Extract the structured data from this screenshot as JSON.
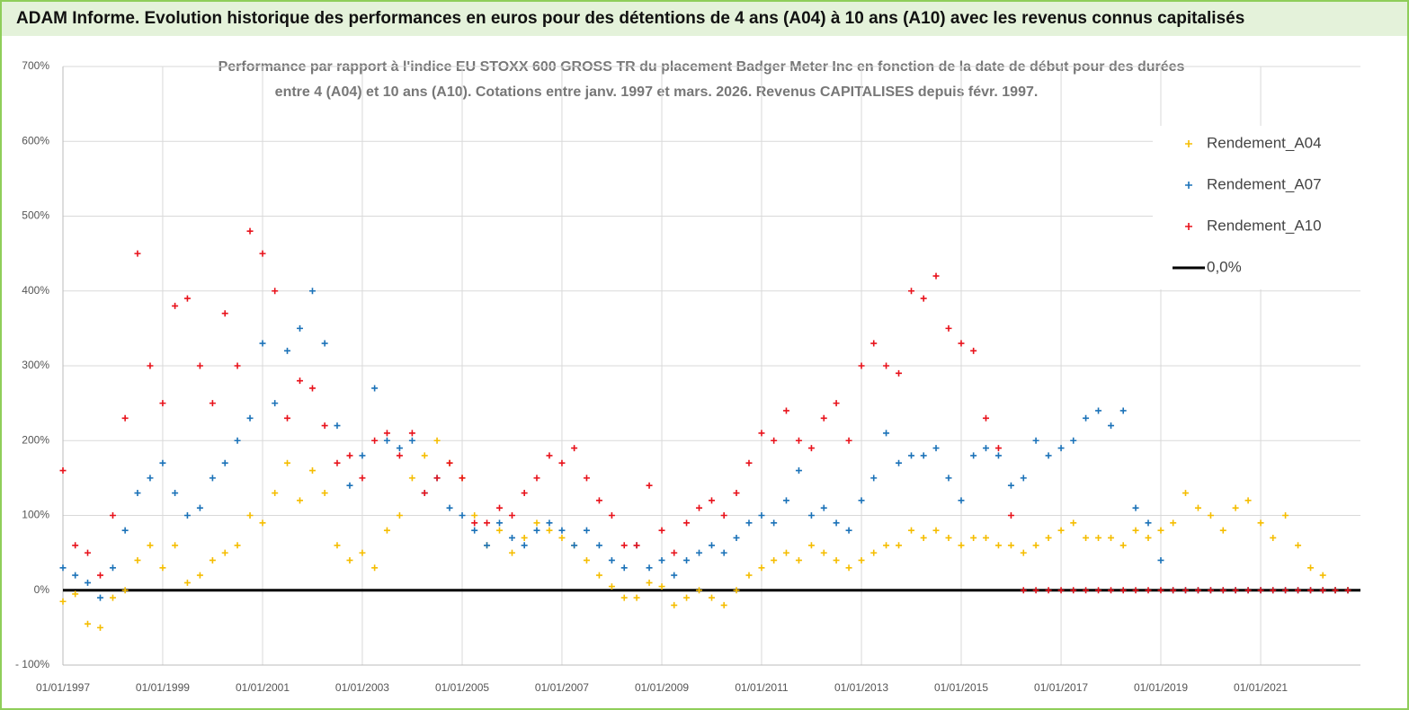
{
  "header": {
    "title": "ADAM Informe. Evolution historique des performances en euros pour des détentions de 4 ans (A04) à 10 ans (A10) avec les revenus connus capitalisés"
  },
  "chart_data": {
    "type": "scatter",
    "title": [
      "Performance par rapport à l'indice EU STOXX 600 GROSS TR  du placement Badger Meter Inc en fonction de la date de début pour des durées",
      "entre 4 (A04) et 10 ans (A10).  Cotations entre janv. 1997 et mars. 2026. Revenus CAPITALISES depuis févr. 1997."
    ],
    "x": [
      "1997-01-01",
      "1997-04-01",
      "1997-07-01",
      "1997-10-01",
      "1998-01-01",
      "1998-04-01",
      "1998-07-01",
      "1998-10-01",
      "1999-01-01",
      "1999-04-01",
      "1999-07-01",
      "1999-10-01",
      "2000-01-01",
      "2000-04-01",
      "2000-07-01",
      "2000-10-01",
      "2001-01-01",
      "2001-04-01",
      "2001-07-01",
      "2001-10-01",
      "2002-01-01",
      "2002-04-01",
      "2002-07-01",
      "2002-10-01",
      "2003-01-01",
      "2003-04-01",
      "2003-07-01",
      "2003-10-01",
      "2004-01-01",
      "2004-04-01",
      "2004-07-01",
      "2004-10-01",
      "2005-01-01",
      "2005-04-01",
      "2005-07-01",
      "2005-10-01",
      "2006-01-01",
      "2006-04-01",
      "2006-07-01",
      "2006-10-01",
      "2007-01-01",
      "2007-04-01",
      "2007-07-01",
      "2007-10-01",
      "2008-01-01",
      "2008-04-01",
      "2008-07-01",
      "2008-10-01",
      "2009-01-01",
      "2009-04-01",
      "2009-07-01",
      "2009-10-01",
      "2010-01-01",
      "2010-04-01",
      "2010-07-01",
      "2010-10-01",
      "2011-01-01",
      "2011-04-01",
      "2011-07-01",
      "2011-10-01",
      "2012-01-01",
      "2012-04-01",
      "2012-07-01",
      "2012-10-01",
      "2013-01-01",
      "2013-04-01",
      "2013-07-01",
      "2013-10-01",
      "2014-01-01",
      "2014-04-01",
      "2014-07-01",
      "2014-10-01",
      "2015-01-01",
      "2015-04-01",
      "2015-07-01",
      "2015-10-01",
      "2016-01-01",
      "2016-04-01",
      "2016-07-01",
      "2016-10-01",
      "2017-01-01",
      "2017-04-01",
      "2017-07-01",
      "2017-10-01",
      "2018-01-01",
      "2018-04-01",
      "2018-07-01",
      "2018-10-01",
      "2019-01-01",
      "2019-04-01",
      "2019-07-01",
      "2019-10-01",
      "2020-01-01",
      "2020-04-01",
      "2020-07-01",
      "2020-10-01",
      "2021-01-01",
      "2021-04-01",
      "2021-07-01",
      "2021-10-01",
      "2022-01-01",
      "2022-04-01",
      "2022-07-01",
      "2022-10-01"
    ],
    "series": [
      {
        "name": "Rendement_A04",
        "color": "#f5bd00",
        "values": [
          -15,
          -5,
          -45,
          -50,
          -10,
          0,
          40,
          60,
          30,
          60,
          10,
          20,
          40,
          50,
          60,
          100,
          90,
          130,
          170,
          120,
          160,
          130,
          60,
          40,
          50,
          30,
          80,
          100,
          150,
          180,
          200,
          170,
          150,
          100,
          60,
          80,
          50,
          70,
          90,
          80,
          70,
          60,
          40,
          20,
          5,
          -10,
          -10,
          10,
          5,
          -20,
          -10,
          0,
          -10,
          -20,
          0,
          20,
          30,
          40,
          50,
          40,
          60,
          50,
          40,
          30,
          40,
          50,
          60,
          60,
          80,
          70,
          80,
          70,
          60,
          70,
          70,
          60,
          60,
          50,
          60,
          70,
          80,
          90,
          70,
          70,
          70,
          60,
          80,
          70,
          80,
          90,
          130,
          110,
          100,
          80,
          110,
          120,
          90,
          70,
          100,
          60,
          30,
          20,
          0,
          0
        ]
      },
      {
        "name": "Rendement_A07",
        "color": "#1b72b8",
        "values": [
          30,
          20,
          10,
          -10,
          30,
          80,
          130,
          150,
          170,
          130,
          100,
          110,
          150,
          170,
          200,
          230,
          330,
          250,
          320,
          350,
          400,
          330,
          220,
          140,
          180,
          270,
          200,
          190,
          200,
          130,
          150,
          110,
          100,
          80,
          60,
          90,
          70,
          60,
          80,
          90,
          80,
          60,
          80,
          60,
          40,
          30,
          60,
          30,
          40,
          20,
          40,
          50,
          60,
          50,
          70,
          90,
          100,
          90,
          120,
          160,
          100,
          110,
          90,
          80,
          120,
          150,
          210,
          170,
          180,
          180,
          190,
          150,
          120,
          180,
          190,
          180,
          140,
          150,
          200,
          180,
          190,
          200,
          230,
          240,
          220,
          240,
          110,
          90,
          40,
          0,
          0,
          0,
          0,
          0,
          0,
          0,
          0,
          0,
          0,
          0,
          0,
          0,
          0,
          0
        ]
      },
      {
        "name": "Rendement_A10",
        "color": "#e8121b",
        "values": [
          160,
          60,
          50,
          20,
          100,
          230,
          450,
          300,
          250,
          380,
          390,
          300,
          250,
          370,
          300,
          480,
          450,
          400,
          230,
          280,
          270,
          220,
          170,
          180,
          150,
          200,
          210,
          180,
          210,
          130,
          150,
          170,
          150,
          90,
          90,
          110,
          100,
          130,
          150,
          180,
          170,
          190,
          150,
          120,
          100,
          60,
          60,
          140,
          80,
          50,
          90,
          110,
          120,
          100,
          130,
          170,
          210,
          200,
          240,
          200,
          190,
          230,
          250,
          200,
          300,
          330,
          300,
          290,
          400,
          390,
          420,
          350,
          330,
          320,
          230,
          190,
          100,
          0,
          0,
          0,
          0,
          0,
          0,
          0,
          0,
          0,
          0,
          0,
          0,
          0,
          0,
          0,
          0,
          0,
          0,
          0,
          0,
          0,
          0,
          0,
          0,
          0,
          0,
          0
        ]
      }
    ],
    "reference_line": {
      "name": "0,0%",
      "color": "#000000",
      "value": 0
    },
    "xlim": [
      "1997-01-01",
      "2023-01-01"
    ],
    "xticks": [
      {
        "value": "1997-01-01",
        "label": "01/01/1997"
      },
      {
        "value": "1999-01-01",
        "label": "01/01/1999"
      },
      {
        "value": "2001-01-01",
        "label": "01/01/2001"
      },
      {
        "value": "2003-01-01",
        "label": "01/01/2003"
      },
      {
        "value": "2005-01-01",
        "label": "01/01/2005"
      },
      {
        "value": "2007-01-01",
        "label": "01/01/2007"
      },
      {
        "value": "2009-01-01",
        "label": "01/01/2009"
      },
      {
        "value": "2011-01-01",
        "label": "01/01/2011"
      },
      {
        "value": "2013-01-01",
        "label": "01/01/2013"
      },
      {
        "value": "2015-01-01",
        "label": "01/01/2015"
      },
      {
        "value": "2017-01-01",
        "label": "01/01/2017"
      },
      {
        "value": "2019-01-01",
        "label": "01/01/2019"
      },
      {
        "value": "2021-01-01",
        "label": "01/01/2021"
      }
    ],
    "ylim": [
      -100,
      700
    ],
    "yticks": [
      {
        "value": -100,
        "label": "- 100%"
      },
      {
        "value": 0,
        "label": "0%"
      },
      {
        "value": 100,
        "label": "100%"
      },
      {
        "value": 200,
        "label": "200%"
      },
      {
        "value": 300,
        "label": "300%"
      },
      {
        "value": 400,
        "label": "400%"
      },
      {
        "value": 500,
        "label": "500%"
      },
      {
        "value": 600,
        "label": "600%"
      },
      {
        "value": 700,
        "label": "700%"
      }
    ],
    "grid": true
  }
}
